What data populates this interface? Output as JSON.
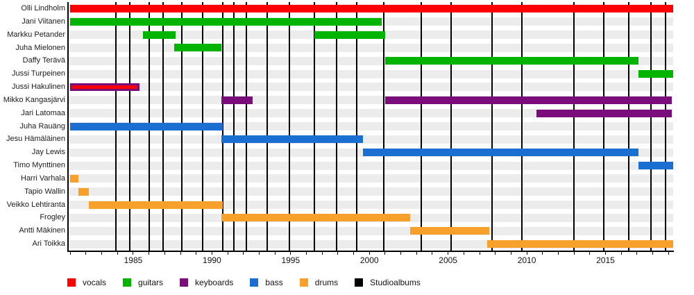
{
  "colors": {
    "vocals": "#fa0000",
    "guitars": "#00b400",
    "keyboards": "#7b0c7b",
    "bass": "#1b6fd0",
    "drums": "#f7a12c",
    "albums": "#000000",
    "row_stripe": "#ececec",
    "text": "#1a1a1a"
  },
  "legend": {
    "items": [
      {
        "label": "vocals",
        "color_key": "vocals"
      },
      {
        "label": "guitars",
        "color_key": "guitars"
      },
      {
        "label": "keyboards",
        "color_key": "keyboards"
      },
      {
        "label": "bass",
        "color_key": "bass"
      },
      {
        "label": "drums",
        "color_key": "drums"
      },
      {
        "label": "Studioalbums",
        "color_key": "albums"
      }
    ]
  },
  "chart_data": {
    "type": "timeline",
    "title": "",
    "xlabel": "",
    "ylabel": "",
    "grid": false,
    "x_axis": {
      "min": 1980.9,
      "max": 2019.3,
      "labeled_ticks": [
        1985,
        1990,
        1995,
        2000,
        2005,
        2010,
        2015
      ],
      "minor_tick_every": 1
    },
    "rows": [
      {
        "name": "Olli Lindholm",
        "roles": [
          "vocals"
        ],
        "segments": [
          {
            "start": 1981.0,
            "end": 2019.3,
            "color": "vocals"
          }
        ]
      },
      {
        "name": "Jani Viitanen",
        "roles": [
          "guitars"
        ],
        "segments": [
          {
            "start": 1981.0,
            "end": 2000.8,
            "color": "guitars"
          }
        ]
      },
      {
        "name": "Markku Petander",
        "roles": [
          "guitars"
        ],
        "segments": [
          {
            "start": 1985.6,
            "end": 1987.7,
            "color": "guitars"
          },
          {
            "start": 1996.5,
            "end": 2001.0,
            "color": "guitars"
          }
        ]
      },
      {
        "name": "Juha Mielonen",
        "roles": [
          "guitars"
        ],
        "segments": [
          {
            "start": 1987.6,
            "end": 1990.6,
            "color": "guitars"
          }
        ]
      },
      {
        "name": "Daffy Terävä",
        "roles": [
          "guitars"
        ],
        "segments": [
          {
            "start": 2001.0,
            "end": 2017.1,
            "color": "guitars"
          }
        ]
      },
      {
        "name": "Jussi Turpeinen",
        "roles": [
          "guitars"
        ],
        "segments": [
          {
            "start": 2017.1,
            "end": 2019.3,
            "color": "guitars"
          }
        ]
      },
      {
        "name": "Jussi Hakulinen",
        "roles": [
          "vocals",
          "keyboards"
        ],
        "segments": [
          {
            "start": 1981.0,
            "end": 1985.4,
            "color": "keyboards",
            "overlay": "vocals"
          }
        ]
      },
      {
        "name": "Mikko Kangasjärvi",
        "roles": [
          "keyboards"
        ],
        "segments": [
          {
            "start": 1990.6,
            "end": 1992.6,
            "color": "keyboards"
          },
          {
            "start": 2001.0,
            "end": 2019.2,
            "color": "keyboards"
          }
        ]
      },
      {
        "name": "Jari Latomaa",
        "roles": [
          "keyboards"
        ],
        "segments": [
          {
            "start": 2010.6,
            "end": 2019.2,
            "color": "keyboards"
          }
        ]
      },
      {
        "name": "Juha Rauäng",
        "roles": [
          "bass"
        ],
        "segments": [
          {
            "start": 1981.0,
            "end": 1990.7,
            "color": "bass"
          }
        ]
      },
      {
        "name": "Jesu Hämäläinen",
        "roles": [
          "bass"
        ],
        "segments": [
          {
            "start": 1990.6,
            "end": 1999.6,
            "color": "bass"
          }
        ]
      },
      {
        "name": "Jay Lewis",
        "roles": [
          "bass"
        ],
        "segments": [
          {
            "start": 1999.6,
            "end": 2017.1,
            "color": "bass"
          }
        ]
      },
      {
        "name": "Timo Mynttinen",
        "roles": [
          "bass"
        ],
        "segments": [
          {
            "start": 2017.1,
            "end": 2019.3,
            "color": "bass"
          }
        ]
      },
      {
        "name": "Harri Varhala",
        "roles": [
          "drums"
        ],
        "segments": [
          {
            "start": 1981.0,
            "end": 1981.5,
            "color": "drums"
          }
        ]
      },
      {
        "name": "Tapio Wallin",
        "roles": [
          "drums"
        ],
        "segments": [
          {
            "start": 1981.5,
            "end": 1982.2,
            "color": "drums"
          }
        ]
      },
      {
        "name": "Veikko Lehtiranta",
        "roles": [
          "drums"
        ],
        "segments": [
          {
            "start": 1982.2,
            "end": 1990.7,
            "color": "drums"
          }
        ]
      },
      {
        "name": "Frogley",
        "roles": [
          "drums"
        ],
        "segments": [
          {
            "start": 1990.6,
            "end": 2002.6,
            "color": "drums"
          }
        ]
      },
      {
        "name": "Antti Mäkinen",
        "roles": [
          "drums"
        ],
        "segments": [
          {
            "start": 2002.6,
            "end": 2007.6,
            "color": "drums"
          }
        ]
      },
      {
        "name": "Ari Toikka",
        "roles": [
          "drums"
        ],
        "segments": [
          {
            "start": 2007.5,
            "end": 2019.3,
            "color": "drums"
          }
        ]
      }
    ],
    "album_lines": [
      1983.9,
      1984.8,
      1986.0,
      1986.9,
      1988.1,
      1989.4,
      1990.7,
      1991.4,
      1992.2,
      1993.5,
      1994.9,
      1996.5,
      1997.9,
      1999.2,
      2000.9,
      2003.3,
      2005.2,
      2007.8,
      2009.7,
      2013.0,
      2014.9,
      2016.5,
      2017.9,
      2018.8
    ]
  }
}
